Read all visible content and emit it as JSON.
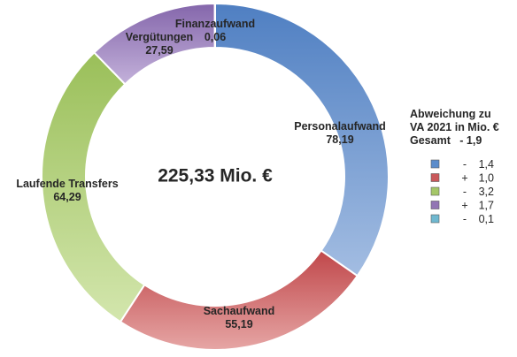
{
  "chart_data": {
    "type": "pie",
    "title": "",
    "center_label": "225,33 Mio. €",
    "series": [
      {
        "name": "",
        "slices": [
          {
            "label": "Personalaufwand",
            "value_text": "78,19",
            "value": 78.19,
            "color": "#5b8ccb"
          },
          {
            "label": "Sachaufwand",
            "value_text": "55,19",
            "value": 55.19,
            "color": "#c9585a"
          },
          {
            "label": "Laufende Transfers",
            "value_text": "64,29",
            "value": 64.29,
            "color": "#a4c667"
          },
          {
            "label": "Vergütungen",
            "value_text": "27,59",
            "value": 27.59,
            "color": "#9275b4"
          },
          {
            "label": "Finanzaufwand",
            "value_text": "0,06",
            "value": 0.06,
            "color": "#6fb8d0"
          }
        ]
      }
    ],
    "legend": {
      "position": "right",
      "title_lines": [
        "Abweichung zu",
        "VA 2021 in Mio. €",
        "Gesamt   - 1,9"
      ],
      "entries": [
        {
          "sign": "-",
          "value": "1,4",
          "color": "#5b8ccb"
        },
        {
          "sign": "+",
          "value": "1,0",
          "color": "#c9585a"
        },
        {
          "sign": "-",
          "value": "3,2",
          "color": "#a4c667"
        },
        {
          "sign": "+",
          "value": "1,7",
          "color": "#9275b4"
        },
        {
          "sign": "-",
          "value": "0,1",
          "color": "#6fb8d0"
        }
      ]
    }
  }
}
